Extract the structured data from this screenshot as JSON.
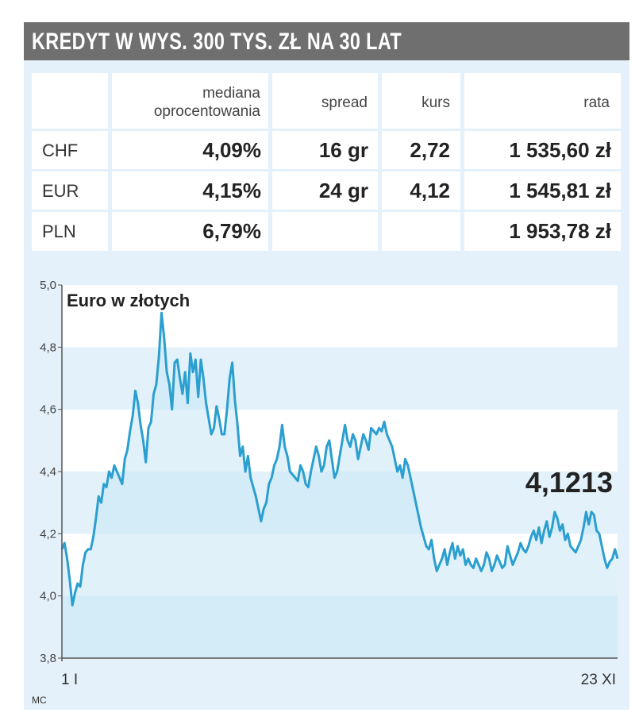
{
  "title": "KREDYT W WYS. 300 TYS. ZŁ NA 30 LAT",
  "table": {
    "headers": [
      "",
      "mediana oprocentowania",
      "spread",
      "kurs",
      "rata"
    ],
    "header_lines": {
      "rate_1": "mediana",
      "rate_2": "oprocentowania"
    },
    "rows": [
      {
        "currency": "CHF",
        "rate": "4,09%",
        "spread": "16 gr",
        "kurs": "2,72",
        "rata": "1 535,60 zł"
      },
      {
        "currency": "EUR",
        "rate": "4,15%",
        "spread": "24 gr",
        "kurs": "4,12",
        "rata": "1 545,81 zł"
      },
      {
        "currency": "PLN",
        "rate": "6,79%",
        "spread": "",
        "kurs": "",
        "rata": "1 953,78 zł"
      }
    ]
  },
  "chart_data": {
    "type": "area",
    "title": "Euro w złotych",
    "x_start_label": "1 I",
    "x_end_label": "23 XI",
    "source": "MC",
    "y_ticks": [
      "3,8",
      "4,0",
      "4,2",
      "4,4",
      "4,6",
      "4,8",
      "5,0"
    ],
    "ylim": [
      3.8,
      5.0
    ],
    "last_value_label": "4,1213",
    "grid": "horizontal bands",
    "colors": {
      "line": "#2a9fd0",
      "fill": "#c9e6f5",
      "band_light": "#ffffff",
      "band_dark": "#e2f1fa"
    },
    "values": [
      4.15,
      4.17,
      4.12,
      4.05,
      3.97,
      4.01,
      4.04,
      4.03,
      4.1,
      4.14,
      4.15,
      4.15,
      4.19,
      4.25,
      4.32,
      4.3,
      4.36,
      4.35,
      4.4,
      4.38,
      4.42,
      4.4,
      4.38,
      4.36,
      4.44,
      4.47,
      4.53,
      4.58,
      4.66,
      4.62,
      4.55,
      4.5,
      4.43,
      4.54,
      4.56,
      4.65,
      4.68,
      4.77,
      4.91,
      4.83,
      4.72,
      4.68,
      4.6,
      4.75,
      4.76,
      4.7,
      4.65,
      4.72,
      4.62,
      4.78,
      4.72,
      4.76,
      4.64,
      4.76,
      4.7,
      4.62,
      4.57,
      4.52,
      4.54,
      4.61,
      4.57,
      4.52,
      4.52,
      4.6,
      4.7,
      4.75,
      4.63,
      4.55,
      4.45,
      4.48,
      4.4,
      4.45,
      4.38,
      4.35,
      4.32,
      4.28,
      4.24,
      4.28,
      4.3,
      4.36,
      4.38,
      4.42,
      4.44,
      4.48,
      4.55,
      4.48,
      4.45,
      4.4,
      4.39,
      4.38,
      4.37,
      4.42,
      4.4,
      4.36,
      4.35,
      4.4,
      4.44,
      4.48,
      4.45,
      4.4,
      4.42,
      4.48,
      4.5,
      4.44,
      4.38,
      4.4,
      4.45,
      4.5,
      4.55,
      4.5,
      4.48,
      4.52,
      4.5,
      4.44,
      4.48,
      4.52,
      4.5,
      4.47,
      4.54,
      4.53,
      4.52,
      4.54,
      4.53,
      4.56,
      4.52,
      4.5,
      4.48,
      4.44,
      4.4,
      4.42,
      4.38,
      4.44,
      4.42,
      4.38,
      4.34,
      4.3,
      4.26,
      4.22,
      4.19,
      4.16,
      4.15,
      4.18,
      4.12,
      4.08,
      4.1,
      4.12,
      4.15,
      4.1,
      4.14,
      4.17,
      4.12,
      4.16,
      4.13,
      4.15,
      4.1,
      4.12,
      4.1,
      4.09,
      4.12,
      4.1,
      4.08,
      4.1,
      4.14,
      4.12,
      4.08,
      4.1,
      4.13,
      4.11,
      4.09,
      4.1,
      4.16,
      4.13,
      4.1,
      4.12,
      4.14,
      4.17,
      4.15,
      4.14,
      4.16,
      4.19,
      4.21,
      4.18,
      4.22,
      4.17,
      4.21,
      4.24,
      4.19,
      4.22,
      4.27,
      4.25,
      4.21,
      4.23,
      4.18,
      4.2,
      4.16,
      4.15,
      4.14,
      4.16,
      4.18,
      4.22,
      4.27,
      4.23,
      4.27,
      4.26,
      4.21,
      4.2,
      4.16,
      4.12,
      4.09,
      4.11,
      4.12,
      4.15,
      4.12
    ]
  }
}
